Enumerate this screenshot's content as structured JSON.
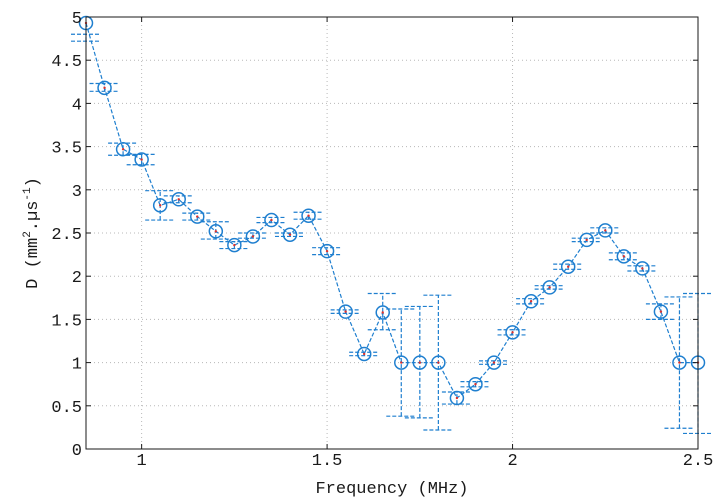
{
  "chart_data": {
    "type": "scatter",
    "xlabel": "Frequency (MHz)",
    "ylabel": {
      "prefix": "D (mm",
      "exp1": "2",
      "middle": ".µs",
      "exp2": "-1",
      "suffix": ")"
    },
    "xlim": [
      0.85,
      2.5
    ],
    "ylim": [
      0,
      5
    ],
    "xticks": [
      1,
      1.5,
      2,
      2.5
    ],
    "xtick_labels": [
      "1",
      "1.5",
      "2",
      "2.5"
    ],
    "yticks": [
      0,
      0.5,
      1,
      1.5,
      2,
      2.5,
      3,
      3.5,
      4,
      4.5,
      5
    ],
    "ytick_labels": [
      "0",
      "0.5",
      "1",
      "1.5",
      "2",
      "2.5",
      "3",
      "3.5",
      "4",
      "4.5",
      "5"
    ],
    "grid": true,
    "line_style": "dashed",
    "marker": "circle",
    "errorbar_style": "dashed",
    "x": [
      0.85,
      0.9,
      0.95,
      1.0,
      1.05,
      1.1,
      1.15,
      1.2,
      1.25,
      1.3,
      1.35,
      1.4,
      1.45,
      1.5,
      1.55,
      1.6,
      1.65,
      1.7,
      1.75,
      1.8,
      1.85,
      1.9,
      1.95,
      2.0,
      2.05,
      2.1,
      2.15,
      2.2,
      2.25,
      2.3,
      2.35,
      2.4,
      2.45,
      2.5
    ],
    "y": [
      4.93,
      4.18,
      3.47,
      3.35,
      2.82,
      2.89,
      2.69,
      2.52,
      2.36,
      2.46,
      2.65,
      2.48,
      2.7,
      2.29,
      1.59,
      1.1,
      1.58,
      1.0,
      1.0,
      1.0,
      0.59,
      0.75,
      1.0,
      1.35,
      1.71,
      1.87,
      2.11,
      2.42,
      2.53,
      2.23,
      2.09,
      1.59,
      1.0,
      1.0
    ],
    "yerr_low": [
      4.72,
      4.14,
      3.4,
      3.29,
      2.65,
      2.85,
      2.65,
      2.43,
      2.32,
      2.44,
      2.62,
      2.46,
      2.66,
      2.25,
      1.57,
      1.08,
      1.38,
      0.38,
      0.36,
      0.22,
      0.52,
      0.72,
      0.98,
      1.32,
      1.68,
      1.85,
      2.08,
      2.4,
      2.5,
      2.19,
      2.06,
      1.5,
      0.24,
      0.18
    ],
    "yerr_high": [
      4.8,
      4.23,
      3.54,
      3.41,
      2.99,
      2.93,
      2.73,
      2.63,
      2.4,
      2.5,
      2.68,
      2.5,
      2.74,
      2.33,
      1.61,
      1.12,
      1.8,
      1.62,
      1.65,
      1.78,
      0.66,
      0.78,
      1.02,
      1.38,
      1.74,
      1.89,
      2.14,
      2.44,
      2.56,
      2.27,
      2.12,
      1.68,
      1.76,
      1.8
    ],
    "colors": {
      "series": "#1f7fcf",
      "marker_center": "#e0312b",
      "frame": "#1a1a1a",
      "grid": "#b8b8b8"
    }
  }
}
